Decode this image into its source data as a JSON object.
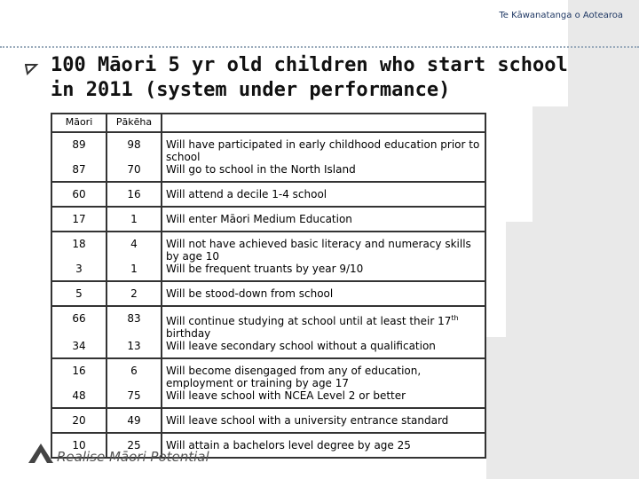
{
  "header": {
    "logo": "Te Kāwanatanga o Aotearoa",
    "title_line1": "100 Māori 5 yr old children who start school",
    "title_line2": "in 2011  (system under performance)"
  },
  "table": {
    "columns": [
      "Māori",
      "Pākēha"
    ],
    "groups": [
      [
        {
          "maori": "89",
          "pakeha": "98",
          "text": "Will have participated in early childhood education prior to school"
        },
        {
          "maori": "87",
          "pakeha": "70",
          "text": "Will go to school in the North Island"
        }
      ],
      [
        {
          "maori": "60",
          "pakeha": "16",
          "text": "Will attend a decile 1-4 school"
        }
      ],
      [
        {
          "maori": "17",
          "pakeha": "1",
          "text": "Will enter Māori Medium Education"
        }
      ],
      [
        {
          "maori": "18",
          "pakeha": "4",
          "text": "Will not have achieved basic literacy and numeracy skills by age 10"
        },
        {
          "maori": "3",
          "pakeha": "1",
          "text": "Will be frequent truants by year 9/10"
        }
      ],
      [
        {
          "maori": "5",
          "pakeha": "2",
          "text": "Will be stood-down from school"
        }
      ],
      [
        {
          "maori": "66",
          "pakeha": "83",
          "text": "Will continue studying at school until at least their 17",
          "sup": "th",
          "after": " birthday"
        },
        {
          "maori": "34",
          "pakeha": "13",
          "text": "Will leave secondary school without a qualification"
        }
      ],
      [
        {
          "maori": "16",
          "pakeha": "6",
          "text": "Will become disengaged from any of education, employment or training by age 17"
        },
        {
          "maori": "48",
          "pakeha": "75",
          "text": "Will leave school with NCEA Level 2 or better"
        }
      ],
      [
        {
          "maori": "20",
          "pakeha": "49",
          "text": "Will leave school with a university entrance standard"
        }
      ],
      [
        {
          "maori": "10",
          "pakeha": "25",
          "text": "Will attain a bachelors level degree by age 25"
        }
      ]
    ]
  },
  "footer": {
    "tagline": "Realise Māori Potential"
  }
}
